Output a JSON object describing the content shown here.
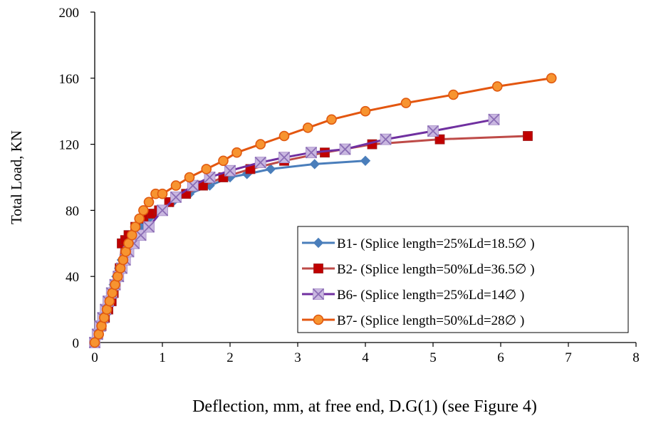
{
  "chart_data": {
    "type": "line",
    "title": "",
    "xlabel": "Deflection, mm, at free end, D.G(1) (see Figure 4)",
    "ylabel": "Total Load, KN",
    "xlim": [
      0,
      8
    ],
    "ylim": [
      0,
      200
    ],
    "xticks": [
      "0",
      "1",
      "2",
      "3",
      "4",
      "5",
      "6",
      "7",
      "8"
    ],
    "yticks": [
      "0",
      "40",
      "80",
      "120",
      "160",
      "200"
    ],
    "grid": false,
    "legend_position": "bottom-right",
    "series": [
      {
        "name": "B1- (Splice length=25%Ld=18.5∅ )",
        "color": "#4a7ebb",
        "marker": "diamond",
        "x": [
          0,
          0.04,
          0.08,
          0.12,
          0.16,
          0.2,
          0.24,
          0.28,
          0.32,
          0.36,
          0.4,
          0.45,
          0.5,
          0.58,
          0.68,
          0.8,
          0.95,
          1.15,
          1.4,
          1.7,
          2.0,
          2.25,
          2.6,
          3.25,
          4.0
        ],
        "y": [
          0,
          5,
          10,
          15,
          20,
          25,
          30,
          35,
          40,
          45,
          50,
          55,
          60,
          65,
          70,
          75,
          80,
          85,
          90,
          95,
          100,
          102,
          105,
          108,
          110
        ]
      },
      {
        "name": "B2- (Splice length=50%Ld=36.5∅ )",
        "color": "#be4b48",
        "marker": "square",
        "x": [
          0,
          0.05,
          0.1,
          0.15,
          0.2,
          0.25,
          0.28,
          0.31,
          0.34,
          0.37,
          0.4,
          0.45,
          0.5,
          0.6,
          0.72,
          0.85,
          0.95,
          1.1,
          1.35,
          1.6,
          1.9,
          2.3,
          2.8,
          3.4,
          4.1,
          5.1,
          6.4
        ],
        "y": [
          0,
          5,
          10,
          15,
          20,
          25,
          30,
          35,
          40,
          45,
          60,
          62,
          65,
          70,
          75,
          78,
          80,
          85,
          90,
          95,
          100,
          105,
          110,
          115,
          120,
          123,
          125
        ]
      },
      {
        "name": "B6- (Splice length=25%Ld=14∅ )",
        "color": "#7030a0",
        "marker": "x-box",
        "x": [
          0,
          0.04,
          0.08,
          0.12,
          0.16,
          0.2,
          0.25,
          0.3,
          0.35,
          0.4,
          0.45,
          0.5,
          0.58,
          0.68,
          0.8,
          1.0,
          1.2,
          1.45,
          1.7,
          2.0,
          2.45,
          2.8,
          3.2,
          3.7,
          4.3,
          5.0,
          5.9
        ],
        "y": [
          0,
          5,
          10,
          15,
          20,
          25,
          30,
          35,
          40,
          45,
          50,
          55,
          60,
          65,
          70,
          80,
          88,
          95,
          100,
          104,
          109,
          112,
          115,
          117,
          123,
          128,
          135
        ]
      },
      {
        "name": "B7- (Splice length=50%Ld=28∅ )",
        "color": "#e3560f",
        "marker": "circle",
        "x": [
          0,
          0.06,
          0.1,
          0.14,
          0.18,
          0.22,
          0.26,
          0.3,
          0.34,
          0.38,
          0.42,
          0.46,
          0.5,
          0.55,
          0.6,
          0.66,
          0.72,
          0.8,
          0.9,
          1.0,
          1.2,
          1.4,
          1.65,
          1.9,
          2.1,
          2.45,
          2.8,
          3.15,
          3.5,
          4.0,
          4.6,
          5.3,
          5.95,
          6.75
        ],
        "y": [
          0,
          5,
          10,
          15,
          20,
          25,
          30,
          35,
          40,
          45,
          50,
          55,
          60,
          65,
          70,
          75,
          80,
          85,
          90,
          90,
          95,
          100,
          105,
          110,
          115,
          120,
          125,
          130,
          135,
          140,
          145,
          150,
          155,
          160
        ]
      }
    ]
  }
}
